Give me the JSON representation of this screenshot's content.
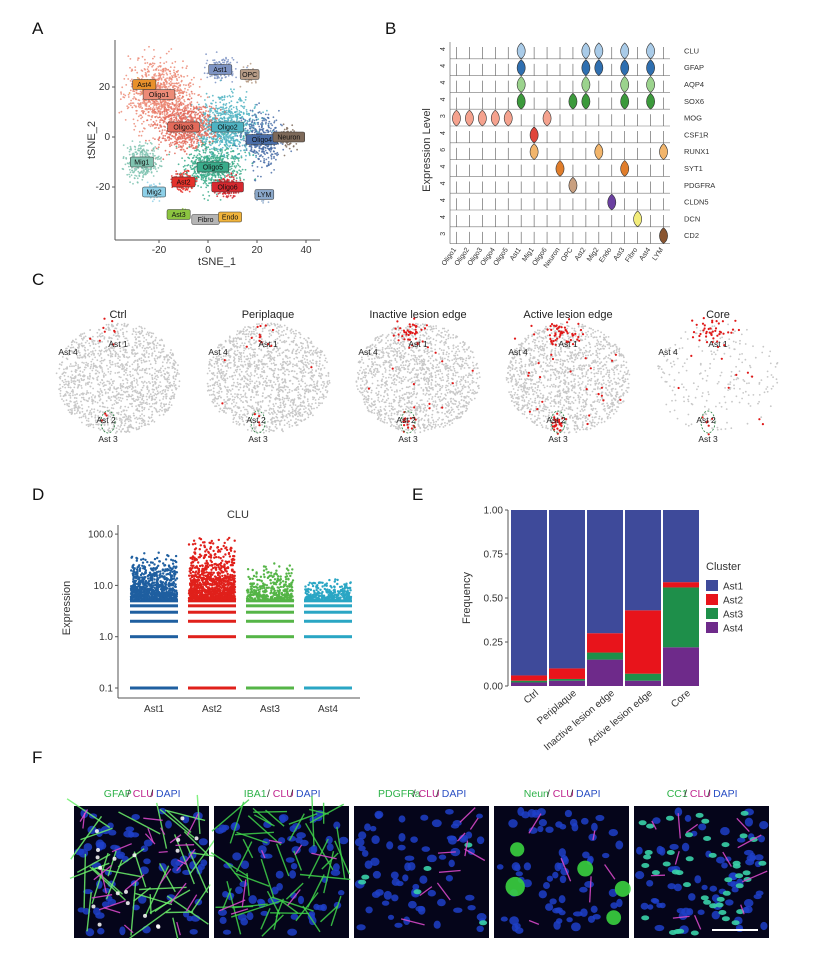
{
  "panels": {
    "A": {
      "label": "A",
      "xlabel": "tSNE_1",
      "ylabel": "tSNE_2",
      "xticks": [
        "-20",
        "0",
        "20",
        "40"
      ],
      "yticks": [
        "20",
        "0",
        "-20"
      ],
      "clusters": [
        {
          "name": "Ast1",
          "color": "#7d93c3",
          "x": 5,
          "y": 27
        },
        {
          "name": "OPC",
          "color": "#b69b86",
          "x": 17,
          "y": 25
        },
        {
          "name": "Ast4",
          "color": "#e8902b",
          "x": -26,
          "y": 21
        },
        {
          "name": "Oligo1",
          "color": "#ec8b77",
          "x": -20,
          "y": 17
        },
        {
          "name": "Oligo2",
          "color": "#4fb3c2",
          "x": 8,
          "y": 4
        },
        {
          "name": "Oligo3",
          "color": "#e36a5a",
          "x": -10,
          "y": 4
        },
        {
          "name": "Oligo4",
          "color": "#4a6ea8",
          "x": 22,
          "y": -1
        },
        {
          "name": "Neuron",
          "color": "#7e6a5a",
          "x": 33,
          "y": 0
        },
        {
          "name": "Mig1",
          "color": "#7fc3b0",
          "x": -27,
          "y": -10
        },
        {
          "name": "Oligo5",
          "color": "#3aab8a",
          "x": 2,
          "y": -12
        },
        {
          "name": "Ast2",
          "color": "#e5312a",
          "x": -10,
          "y": -18
        },
        {
          "name": "Oligo6",
          "color": "#d6282f",
          "x": 8,
          "y": -20
        },
        {
          "name": "Mig2",
          "color": "#8dd0e8",
          "x": -22,
          "y": -22
        },
        {
          "name": "LYM",
          "color": "#8aa7c9",
          "x": 23,
          "y": -23
        },
        {
          "name": "Ast3",
          "color": "#8cc440",
          "x": -12,
          "y": -31
        },
        {
          "name": "Fibro",
          "color": "#b5b5b5",
          "x": -1,
          "y": -33
        },
        {
          "name": "Endo",
          "color": "#f1b43c",
          "x": 9,
          "y": -32
        }
      ]
    },
    "B": {
      "label": "B",
      "ylabel": "Expression Level",
      "genes": [
        "CLU",
        "GFAP",
        "AQP4",
        "SOX6",
        "MOG",
        "CSF1R",
        "RUNX1",
        "SYT1",
        "PDGFRA",
        "CLDN5",
        "DCN",
        "CD2"
      ],
      "gene_ticks": [
        "4",
        "4",
        "4",
        "4",
        "3",
        "4",
        "6",
        "4",
        "4",
        "4",
        "4",
        "3"
      ],
      "clusters": [
        "Oligo1",
        "Oligo2",
        "Oligo3",
        "Oligo4",
        "Oligo5",
        "Ast1",
        "Mig1",
        "Oligo6",
        "Neuron",
        "OPC",
        "Ast2",
        "Mig2",
        "Endo",
        "Ast3",
        "Fibro",
        "Ast4",
        "LYM"
      ]
    },
    "C": {
      "label": "C",
      "conditions": [
        "Ctrl",
        "Periplaque",
        "Inactive lesion edge",
        "Active lesion edge",
        "Core"
      ],
      "labels": [
        "Ast 1",
        "Ast 4",
        "Ast 2",
        "Ast 3"
      ]
    },
    "D": {
      "label": "D",
      "title": "CLU",
      "ylabel": "Expression",
      "yticks": [
        "100.0",
        "10.0",
        "1.0",
        "0.1"
      ],
      "categories": [
        "Ast1",
        "Ast2",
        "Ast3",
        "Ast4"
      ],
      "colors": [
        "#1f5fa0",
        "#e0201b",
        "#55b547",
        "#2aa6c4"
      ]
    },
    "E": {
      "label": "E",
      "ylabel": "Frequency",
      "yticks": [
        "1.00",
        "0.75",
        "0.50",
        "0.25",
        "0.00"
      ],
      "legend_title": "Cluster"
    },
    "F": {
      "label": "F",
      "images": [
        {
          "parts": [
            {
              "t": "GFAP",
              "c": "#2fb34a"
            },
            {
              "t": "/",
              "c": "#333"
            },
            {
              "t": "CLU",
              "c": "#c0268f"
            },
            {
              "t": "/",
              "c": "#333"
            },
            {
              "t": "DAPI",
              "c": "#2b50c4"
            }
          ]
        },
        {
          "parts": [
            {
              "t": "IBA1",
              "c": "#2fb34a"
            },
            {
              "t": "/",
              "c": "#333"
            },
            {
              "t": "CLU",
              "c": "#c0268f"
            },
            {
              "t": "/",
              "c": "#333"
            },
            {
              "t": "DAPI",
              "c": "#2b50c4"
            }
          ]
        },
        {
          "parts": [
            {
              "t": "PDGFRa",
              "c": "#2fb34a"
            },
            {
              "t": "/",
              "c": "#333"
            },
            {
              "t": "CLU",
              "c": "#c0268f"
            },
            {
              "t": "/",
              "c": "#333"
            },
            {
              "t": "DAPI",
              "c": "#2b50c4"
            }
          ]
        },
        {
          "parts": [
            {
              "t": "Neun",
              "c": "#2fb34a"
            },
            {
              "t": "/",
              "c": "#333"
            },
            {
              "t": "CLU",
              "c": "#c0268f"
            },
            {
              "t": "/",
              "c": "#333"
            },
            {
              "t": "DAPI",
              "c": "#2b50c4"
            }
          ]
        },
        {
          "parts": [
            {
              "t": "CC1",
              "c": "#2fb34a"
            },
            {
              "t": "/",
              "c": "#333"
            },
            {
              "t": "CLU",
              "c": "#c0268f"
            },
            {
              "t": "/",
              "c": "#333"
            },
            {
              "t": "DAPI",
              "c": "#2b50c4"
            }
          ]
        }
      ]
    }
  },
  "chart_data": [
    {
      "type": "bar",
      "stacked": true,
      "categories": [
        "Ctrl",
        "Periplaque",
        "Inactive lesion edge",
        "Active lesion edge",
        "Core"
      ],
      "series": [
        {
          "name": "Ast4",
          "color": "#6e2a8a",
          "values": [
            0.02,
            0.03,
            0.15,
            0.03,
            0.22
          ]
        },
        {
          "name": "Ast3",
          "color": "#1e8f4a",
          "values": [
            0.01,
            0.01,
            0.04,
            0.04,
            0.34
          ]
        },
        {
          "name": "Ast2",
          "color": "#e8141b",
          "values": [
            0.03,
            0.06,
            0.11,
            0.36,
            0.03
          ]
        },
        {
          "name": "Ast1",
          "color": "#3e4a9a",
          "values": [
            0.94,
            0.9,
            0.7,
            0.57,
            0.41
          ]
        }
      ],
      "ylabel": "Frequency",
      "ylim": [
        0,
        1
      ],
      "legend": "right"
    },
    {
      "type": "scatter",
      "categories": [
        "Ast1",
        "Ast2",
        "Ast3",
        "Ast4"
      ],
      "title": "CLU",
      "ylabel": "Expression",
      "yscale": "log",
      "ylim": [
        0.1,
        100
      ],
      "max_values": [
        48,
        100,
        28,
        14
      ]
    }
  ]
}
